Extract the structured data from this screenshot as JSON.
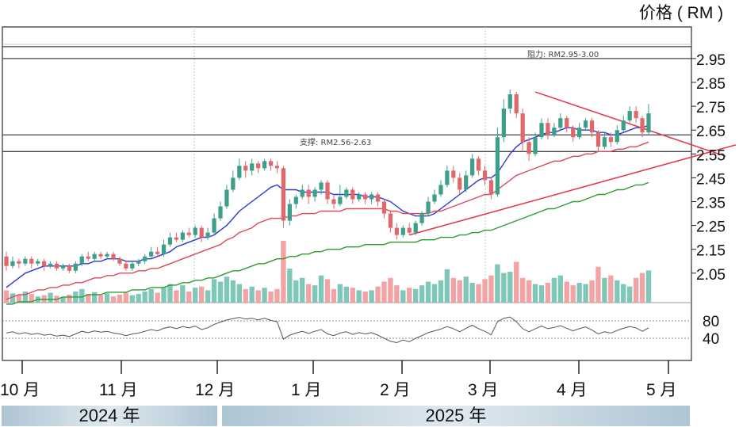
{
  "unit_label": "价格 ( RM )",
  "year_bands": [
    "2024 年",
    "2025 年"
  ],
  "colors": {
    "up": "#3d9e8a",
    "down": "#e06868",
    "ma_short": "#2b37d6",
    "ma_mid": "#e0475c",
    "ma_long": "#2f9a2f",
    "trend": "#e5354f",
    "frame": "#555555"
  },
  "chart_data": {
    "type": "candlestick",
    "title": "",
    "xlabel": "",
    "ylabel": "价格 ( RM )",
    "y_ticks": [
      2.05,
      2.15,
      2.25,
      2.35,
      2.45,
      2.55,
      2.65,
      2.75,
      2.85,
      2.95
    ],
    "ylim": [
      1.93,
      3.05
    ],
    "x_ticks": [
      "10 月",
      "11 月",
      "12 月",
      "1 月",
      "2 月",
      "3 月",
      "4 月",
      "5 月"
    ],
    "annotations": [
      {
        "text": "阻力: RM2.95-3.00",
        "level_low": 2.95,
        "level_high": 3.0
      },
      {
        "text": "支撑: RM2.56-2.63",
        "level_low": 2.56,
        "level_high": 2.63
      }
    ],
    "candles": [
      {
        "o": 2.12,
        "c": 2.08,
        "h": 2.14,
        "l": 2.06
      },
      {
        "o": 2.08,
        "c": 2.1,
        "h": 2.12,
        "l": 2.07
      },
      {
        "o": 2.1,
        "c": 2.09,
        "h": 2.11,
        "l": 2.07
      },
      {
        "o": 2.09,
        "c": 2.11,
        "h": 2.12,
        "l": 2.08
      },
      {
        "o": 2.11,
        "c": 2.09,
        "h": 2.12,
        "l": 2.07
      },
      {
        "o": 2.09,
        "c": 2.1,
        "h": 2.11,
        "l": 2.08
      },
      {
        "o": 2.1,
        "c": 2.08,
        "h": 2.11,
        "l": 2.06
      },
      {
        "o": 2.08,
        "c": 2.09,
        "h": 2.1,
        "l": 2.07
      },
      {
        "o": 2.09,
        "c": 2.07,
        "h": 2.1,
        "l": 2.06
      },
      {
        "o": 2.07,
        "c": 2.08,
        "h": 2.09,
        "l": 2.06
      },
      {
        "o": 2.08,
        "c": 2.06,
        "h": 2.09,
        "l": 2.05
      },
      {
        "o": 2.06,
        "c": 2.09,
        "h": 2.1,
        "l": 2.05
      },
      {
        "o": 2.09,
        "c": 2.12,
        "h": 2.13,
        "l": 2.08
      },
      {
        "o": 2.12,
        "c": 2.11,
        "h": 2.14,
        "l": 2.1
      },
      {
        "o": 2.11,
        "c": 2.13,
        "h": 2.14,
        "l": 2.1
      },
      {
        "o": 2.13,
        "c": 2.12,
        "h": 2.14,
        "l": 2.11
      },
      {
        "o": 2.12,
        "c": 2.13,
        "h": 2.14,
        "l": 2.11
      },
      {
        "o": 2.13,
        "c": 2.11,
        "h": 2.14,
        "l": 2.1
      },
      {
        "o": 2.11,
        "c": 2.09,
        "h": 2.12,
        "l": 2.08
      },
      {
        "o": 2.09,
        "c": 2.07,
        "h": 2.1,
        "l": 2.06
      },
      {
        "o": 2.07,
        "c": 2.09,
        "h": 2.1,
        "l": 2.06
      },
      {
        "o": 2.09,
        "c": 2.1,
        "h": 2.11,
        "l": 2.08
      },
      {
        "o": 2.1,
        "c": 2.12,
        "h": 2.13,
        "l": 2.09
      },
      {
        "o": 2.12,
        "c": 2.14,
        "h": 2.16,
        "l": 2.11
      },
      {
        "o": 2.14,
        "c": 2.13,
        "h": 2.16,
        "l": 2.12
      },
      {
        "o": 2.13,
        "c": 2.17,
        "h": 2.19,
        "l": 2.12
      },
      {
        "o": 2.17,
        "c": 2.2,
        "h": 2.22,
        "l": 2.16
      },
      {
        "o": 2.2,
        "c": 2.19,
        "h": 2.22,
        "l": 2.18
      },
      {
        "o": 2.19,
        "c": 2.22,
        "h": 2.23,
        "l": 2.18
      },
      {
        "o": 2.22,
        "c": 2.21,
        "h": 2.24,
        "l": 2.2
      },
      {
        "o": 2.21,
        "c": 2.24,
        "h": 2.25,
        "l": 2.2
      },
      {
        "o": 2.24,
        "c": 2.2,
        "h": 2.25,
        "l": 2.18
      },
      {
        "o": 2.2,
        "c": 2.22,
        "h": 2.24,
        "l": 2.19
      },
      {
        "o": 2.22,
        "c": 2.28,
        "h": 2.3,
        "l": 2.21
      },
      {
        "o": 2.28,
        "c": 2.33,
        "h": 2.35,
        "l": 2.27
      },
      {
        "o": 2.33,
        "c": 2.4,
        "h": 2.42,
        "l": 2.32
      },
      {
        "o": 2.4,
        "c": 2.45,
        "h": 2.48,
        "l": 2.39
      },
      {
        "o": 2.45,
        "c": 2.5,
        "h": 2.53,
        "l": 2.44
      },
      {
        "o": 2.5,
        "c": 2.48,
        "h": 2.52,
        "l": 2.45
      },
      {
        "o": 2.48,
        "c": 2.51,
        "h": 2.53,
        "l": 2.46
      },
      {
        "o": 2.51,
        "c": 2.49,
        "h": 2.52,
        "l": 2.47
      },
      {
        "o": 2.49,
        "c": 2.52,
        "h": 2.53,
        "l": 2.48
      },
      {
        "o": 2.52,
        "c": 2.5,
        "h": 2.53,
        "l": 2.48
      },
      {
        "o": 2.5,
        "c": 2.49,
        "h": 2.52,
        "l": 2.47
      },
      {
        "o": 2.49,
        "c": 2.27,
        "h": 2.5,
        "l": 2.24
      },
      {
        "o": 2.27,
        "c": 2.34,
        "h": 2.36,
        "l": 2.25
      },
      {
        "o": 2.34,
        "c": 2.37,
        "h": 2.38,
        "l": 2.32
      },
      {
        "o": 2.37,
        "c": 2.4,
        "h": 2.42,
        "l": 2.36
      },
      {
        "o": 2.4,
        "c": 2.37,
        "h": 2.42,
        "l": 2.34
      },
      {
        "o": 2.37,
        "c": 2.4,
        "h": 2.41,
        "l": 2.35
      },
      {
        "o": 2.4,
        "c": 2.43,
        "h": 2.44,
        "l": 2.38
      },
      {
        "o": 2.43,
        "c": 2.36,
        "h": 2.44,
        "l": 2.34
      },
      {
        "o": 2.36,
        "c": 2.34,
        "h": 2.38,
        "l": 2.32
      },
      {
        "o": 2.34,
        "c": 2.37,
        "h": 2.42,
        "l": 2.33
      },
      {
        "o": 2.37,
        "c": 2.4,
        "h": 2.41,
        "l": 2.36
      },
      {
        "o": 2.4,
        "c": 2.36,
        "h": 2.41,
        "l": 2.34
      },
      {
        "o": 2.36,
        "c": 2.38,
        "h": 2.39,
        "l": 2.35
      },
      {
        "o": 2.38,
        "c": 2.36,
        "h": 2.39,
        "l": 2.34
      },
      {
        "o": 2.36,
        "c": 2.38,
        "h": 2.39,
        "l": 2.34
      },
      {
        "o": 2.38,
        "c": 2.35,
        "h": 2.39,
        "l": 2.33
      },
      {
        "o": 2.35,
        "c": 2.3,
        "h": 2.36,
        "l": 2.28
      },
      {
        "o": 2.3,
        "c": 2.24,
        "h": 2.31,
        "l": 2.22
      },
      {
        "o": 2.24,
        "c": 2.21,
        "h": 2.26,
        "l": 2.19
      },
      {
        "o": 2.21,
        "c": 2.24,
        "h": 2.25,
        "l": 2.2
      },
      {
        "o": 2.24,
        "c": 2.22,
        "h": 2.26,
        "l": 2.21
      },
      {
        "o": 2.22,
        "c": 2.26,
        "h": 2.27,
        "l": 2.21
      },
      {
        "o": 2.26,
        "c": 2.3,
        "h": 2.31,
        "l": 2.25
      },
      {
        "o": 2.3,
        "c": 2.35,
        "h": 2.37,
        "l": 2.29
      },
      {
        "o": 2.35,
        "c": 2.38,
        "h": 2.4,
        "l": 2.34
      },
      {
        "o": 2.38,
        "c": 2.42,
        "h": 2.44,
        "l": 2.37
      },
      {
        "o": 2.42,
        "c": 2.48,
        "h": 2.5,
        "l": 2.41
      },
      {
        "o": 2.48,
        "c": 2.45,
        "h": 2.5,
        "l": 2.43
      },
      {
        "o": 2.45,
        "c": 2.4,
        "h": 2.47,
        "l": 2.38
      },
      {
        "o": 2.4,
        "c": 2.46,
        "h": 2.48,
        "l": 2.39
      },
      {
        "o": 2.46,
        "c": 2.53,
        "h": 2.55,
        "l": 2.45
      },
      {
        "o": 2.53,
        "c": 2.48,
        "h": 2.54,
        "l": 2.46
      },
      {
        "o": 2.48,
        "c": 2.44,
        "h": 2.5,
        "l": 2.42
      },
      {
        "o": 2.44,
        "c": 2.38,
        "h": 2.45,
        "l": 2.36
      },
      {
        "o": 2.38,
        "c": 2.62,
        "h": 2.66,
        "l": 2.37
      },
      {
        "o": 2.62,
        "c": 2.74,
        "h": 2.78,
        "l": 2.6
      },
      {
        "o": 2.74,
        "c": 2.8,
        "h": 2.82,
        "l": 2.72
      },
      {
        "o": 2.8,
        "c": 2.72,
        "h": 2.81,
        "l": 2.7
      },
      {
        "o": 2.72,
        "c": 2.6,
        "h": 2.74,
        "l": 2.56
      },
      {
        "o": 2.6,
        "c": 2.55,
        "h": 2.62,
        "l": 2.52
      },
      {
        "o": 2.55,
        "c": 2.62,
        "h": 2.64,
        "l": 2.54
      },
      {
        "o": 2.62,
        "c": 2.68,
        "h": 2.7,
        "l": 2.61
      },
      {
        "o": 2.68,
        "c": 2.63,
        "h": 2.7,
        "l": 2.61
      },
      {
        "o": 2.63,
        "c": 2.66,
        "h": 2.68,
        "l": 2.62
      },
      {
        "o": 2.66,
        "c": 2.7,
        "h": 2.72,
        "l": 2.65
      },
      {
        "o": 2.7,
        "c": 2.66,
        "h": 2.71,
        "l": 2.64
      },
      {
        "o": 2.66,
        "c": 2.62,
        "h": 2.67,
        "l": 2.6
      },
      {
        "o": 2.62,
        "c": 2.66,
        "h": 2.68,
        "l": 2.61
      },
      {
        "o": 2.66,
        "c": 2.69,
        "h": 2.7,
        "l": 2.65
      },
      {
        "o": 2.69,
        "c": 2.64,
        "h": 2.7,
        "l": 2.62
      },
      {
        "o": 2.64,
        "c": 2.58,
        "h": 2.65,
        "l": 2.56
      },
      {
        "o": 2.58,
        "c": 2.62,
        "h": 2.64,
        "l": 2.57
      },
      {
        "o": 2.62,
        "c": 2.6,
        "h": 2.64,
        "l": 2.58
      },
      {
        "o": 2.6,
        "c": 2.65,
        "h": 2.67,
        "l": 2.59
      },
      {
        "o": 2.65,
        "c": 2.69,
        "h": 2.71,
        "l": 2.64
      },
      {
        "o": 2.69,
        "c": 2.73,
        "h": 2.75,
        "l": 2.68
      },
      {
        "o": 2.73,
        "c": 2.7,
        "h": 2.75,
        "l": 2.68
      },
      {
        "o": 2.7,
        "c": 2.64,
        "h": 2.71,
        "l": 2.62
      },
      {
        "o": 2.64,
        "c": 2.72,
        "h": 2.76,
        "l": 2.63
      }
    ],
    "volume": [
      0.2,
      0.15,
      0.12,
      0.18,
      0.14,
      0.1,
      0.12,
      0.16,
      0.11,
      0.09,
      0.13,
      0.18,
      0.22,
      0.14,
      0.17,
      0.12,
      0.15,
      0.1,
      0.13,
      0.16,
      0.12,
      0.14,
      0.18,
      0.22,
      0.16,
      0.25,
      0.3,
      0.2,
      0.28,
      0.18,
      0.24,
      0.26,
      0.2,
      0.38,
      0.34,
      0.42,
      0.36,
      0.3,
      0.22,
      0.26,
      0.2,
      0.24,
      0.18,
      0.22,
      1.0,
      0.55,
      0.36,
      0.4,
      0.3,
      0.28,
      0.44,
      0.38,
      0.22,
      0.3,
      0.26,
      0.24,
      0.2,
      0.18,
      0.2,
      0.26,
      0.34,
      0.4,
      0.28,
      0.2,
      0.24,
      0.22,
      0.28,
      0.34,
      0.3,
      0.36,
      0.54,
      0.4,
      0.36,
      0.42,
      0.32,
      0.3,
      0.38,
      0.44,
      0.62,
      0.48,
      0.5,
      0.66,
      0.4,
      0.36,
      0.3,
      0.28,
      0.32,
      0.4,
      0.44,
      0.34,
      0.28,
      0.32,
      0.3,
      0.36,
      0.58,
      0.4,
      0.44,
      0.36,
      0.3,
      0.26,
      0.4,
      0.48,
      0.52
    ],
    "rsi": {
      "levels": [
        80,
        40
      ],
      "values": [
        52,
        55,
        50,
        53,
        49,
        51,
        47,
        49,
        45,
        47,
        44,
        50,
        56,
        53,
        57,
        54,
        56,
        52,
        50,
        46,
        50,
        52,
        56,
        60,
        57,
        63,
        66,
        62,
        67,
        64,
        68,
        60,
        64,
        72,
        77,
        82,
        85,
        88,
        84,
        86,
        82,
        86,
        81,
        78,
        38,
        47,
        52,
        56,
        51,
        56,
        60,
        50,
        46,
        52,
        55,
        49,
        53,
        50,
        53,
        47,
        40,
        33,
        30,
        36,
        32,
        40,
        46,
        53,
        57,
        61,
        67,
        62,
        55,
        63,
        70,
        62,
        56,
        48,
        78,
        86,
        89,
        78,
        62,
        55,
        62,
        68,
        62,
        65,
        69,
        63,
        57,
        62,
        66,
        59,
        50,
        55,
        52,
        58,
        63,
        67,
        64,
        56,
        64
      ]
    },
    "series": [
      {
        "name": "",
        "role": "short moving average",
        "values": [
          1.99,
          2.01,
          2.03,
          2.05,
          2.06,
          2.07,
          2.08,
          2.08,
          2.08,
          2.08,
          2.08,
          2.08,
          2.09,
          2.09,
          2.1,
          2.1,
          2.11,
          2.11,
          2.11,
          2.1,
          2.1,
          2.1,
          2.11,
          2.11,
          2.12,
          2.13,
          2.14,
          2.16,
          2.17,
          2.18,
          2.19,
          2.2,
          2.2,
          2.21,
          2.23,
          2.25,
          2.28,
          2.31,
          2.33,
          2.35,
          2.37,
          2.39,
          2.41,
          2.42,
          2.4,
          2.4,
          2.4,
          2.39,
          2.39,
          2.39,
          2.39,
          2.39,
          2.38,
          2.38,
          2.38,
          2.38,
          2.38,
          2.37,
          2.37,
          2.37,
          2.36,
          2.35,
          2.33,
          2.31,
          2.3,
          2.29,
          2.29,
          2.29,
          2.3,
          2.32,
          2.34,
          2.36,
          2.38,
          2.4,
          2.42,
          2.44,
          2.45,
          2.45,
          2.47,
          2.51,
          2.55,
          2.58,
          2.6,
          2.61,
          2.62,
          2.63,
          2.64,
          2.64,
          2.65,
          2.66,
          2.66,
          2.65,
          2.65,
          2.65,
          2.64,
          2.64,
          2.63,
          2.63,
          2.64,
          2.65,
          2.66,
          2.66,
          2.67
        ]
      },
      {
        "name": "",
        "role": "mid moving average",
        "values": [
          1.94,
          1.95,
          1.96,
          1.96,
          1.97,
          1.98,
          1.98,
          1.99,
          1.99,
          2.0,
          2.0,
          2.01,
          2.01,
          2.02,
          2.03,
          2.03,
          2.04,
          2.04,
          2.05,
          2.05,
          2.05,
          2.06,
          2.06,
          2.07,
          2.07,
          2.08,
          2.09,
          2.1,
          2.11,
          2.12,
          2.13,
          2.14,
          2.15,
          2.16,
          2.17,
          2.19,
          2.2,
          2.22,
          2.23,
          2.24,
          2.26,
          2.27,
          2.28,
          2.28,
          2.28,
          2.29,
          2.29,
          2.3,
          2.3,
          2.3,
          2.31,
          2.31,
          2.31,
          2.31,
          2.32,
          2.32,
          2.32,
          2.32,
          2.32,
          2.32,
          2.32,
          2.31,
          2.31,
          2.3,
          2.3,
          2.3,
          2.3,
          2.3,
          2.31,
          2.31,
          2.32,
          2.33,
          2.34,
          2.35,
          2.36,
          2.37,
          2.38,
          2.38,
          2.4,
          2.42,
          2.44,
          2.46,
          2.47,
          2.48,
          2.49,
          2.5,
          2.51,
          2.52,
          2.52,
          2.53,
          2.54,
          2.54,
          2.55,
          2.55,
          2.56,
          2.56,
          2.56,
          2.57,
          2.57,
          2.58,
          2.58,
          2.59,
          2.6
        ]
      },
      {
        "name": "",
        "role": "long moving average",
        "values": [
          1.92,
          1.92,
          1.93,
          1.93,
          1.93,
          1.94,
          1.94,
          1.94,
          1.94,
          1.95,
          1.95,
          1.95,
          1.95,
          1.96,
          1.96,
          1.96,
          1.97,
          1.97,
          1.97,
          1.97,
          1.98,
          1.98,
          1.98,
          1.99,
          1.99,
          1.99,
          2.0,
          2.0,
          2.01,
          2.01,
          2.02,
          2.02,
          2.03,
          2.03,
          2.04,
          2.05,
          2.06,
          2.06,
          2.07,
          2.08,
          2.09,
          2.09,
          2.1,
          2.11,
          2.11,
          2.12,
          2.12,
          2.13,
          2.13,
          2.14,
          2.14,
          2.15,
          2.15,
          2.15,
          2.16,
          2.16,
          2.16,
          2.17,
          2.17,
          2.17,
          2.17,
          2.18,
          2.18,
          2.18,
          2.18,
          2.18,
          2.19,
          2.19,
          2.19,
          2.2,
          2.2,
          2.2,
          2.21,
          2.21,
          2.22,
          2.22,
          2.23,
          2.23,
          2.24,
          2.25,
          2.26,
          2.27,
          2.28,
          2.29,
          2.3,
          2.31,
          2.32,
          2.32,
          2.33,
          2.34,
          2.35,
          2.35,
          2.36,
          2.37,
          2.38,
          2.38,
          2.39,
          2.4,
          2.4,
          2.41,
          2.42,
          2.42,
          2.43
        ]
      }
    ],
    "trendlines": [
      {
        "role": "descending resistance",
        "from": [
          84,
          2.81
        ],
        "to": [
          112,
          2.56
        ]
      },
      {
        "role": "ascending support",
        "from": [
          64,
          2.21
        ],
        "to": [
          112,
          2.56
        ]
      }
    ],
    "grid": false,
    "legend": "none"
  }
}
